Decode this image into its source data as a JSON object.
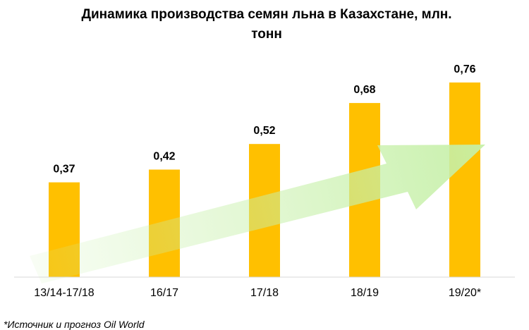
{
  "chart_data": {
    "type": "bar",
    "title": "Динамика производства семян льна в Казахстане, млн. тонн",
    "title_lines": [
      "Динамика производства семян льна в Казахстане, млн.",
      "тонн"
    ],
    "categories": [
      "13/14-17/18",
      "16/17",
      "17/18",
      "18/19",
      "19/20*"
    ],
    "values": [
      0.37,
      0.42,
      0.52,
      0.68,
      0.76
    ],
    "value_labels": [
      "0,37",
      "0,42",
      "0,52",
      "0,68",
      "0,76"
    ],
    "ylim": [
      0,
      0.95
    ],
    "grid": false,
    "legend": "none",
    "bar_color": "#FFC000",
    "trend_arrow_color": "#C6F0A8",
    "axis_color": "#D9D9D9",
    "footnote": "*Источник и прогноз Oil World"
  }
}
